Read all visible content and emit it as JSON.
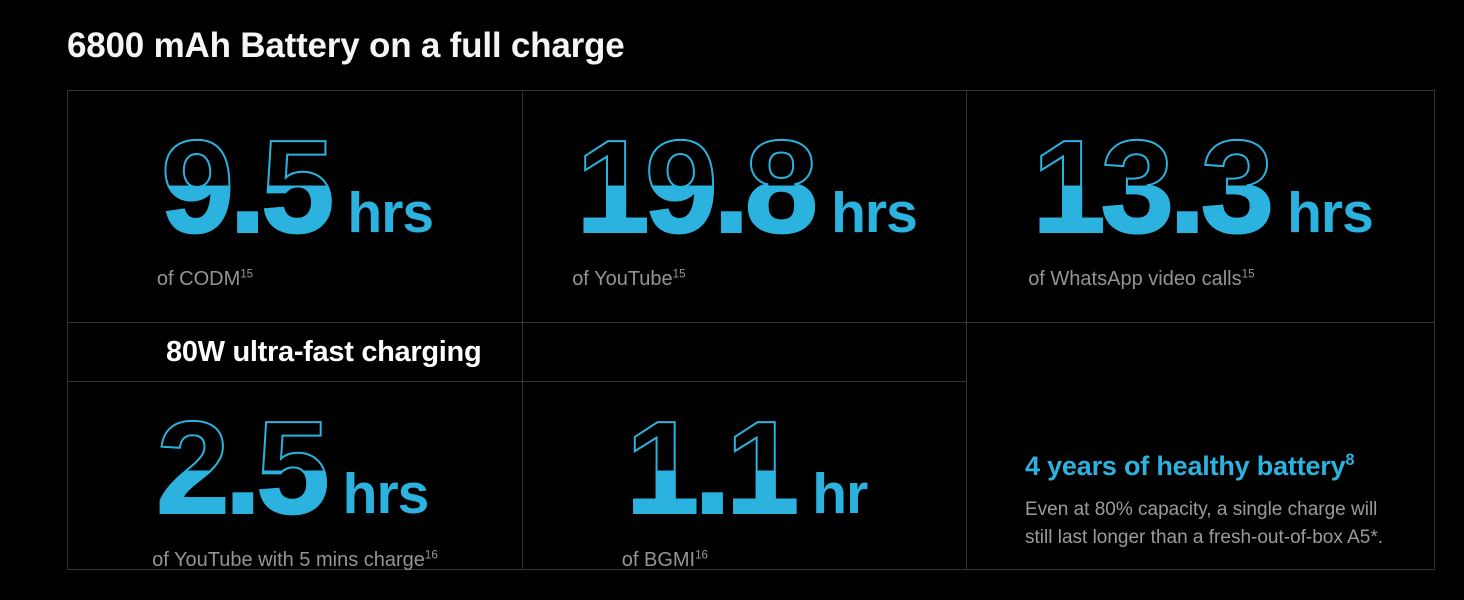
{
  "title": "6800 mAh Battery on a full charge",
  "colors": {
    "accent": "#2BB2DF",
    "grid_line": "#343434",
    "label_gray": "#949494",
    "background": "#000000"
  },
  "stats": {
    "codm": {
      "value": "9.5",
      "unit": "hrs",
      "label": "of CODM",
      "footnote": "15"
    },
    "youtube": {
      "value": "19.8",
      "unit": "hrs",
      "label": "of YouTube",
      "footnote": "15"
    },
    "whatsapp": {
      "value": "13.3",
      "unit": "hrs",
      "label": "of WhatsApp video calls",
      "footnote": "15"
    },
    "youtube_quick": {
      "value": "2.5",
      "unit": "hrs",
      "label": "of YouTube with 5 mins charge",
      "footnote": "16"
    },
    "bgmi": {
      "value": "1.1",
      "unit": "hr",
      "label": "of BGMI",
      "footnote": "16"
    }
  },
  "charging": {
    "label": "80W ultra-fast charging"
  },
  "battery_health": {
    "heading": "4 years of healthy battery",
    "heading_footnote": "8",
    "body_line1": "Even at 80% capacity, a single charge will",
    "body_line2": "still last longer than a fresh-out-of-box A5*."
  }
}
